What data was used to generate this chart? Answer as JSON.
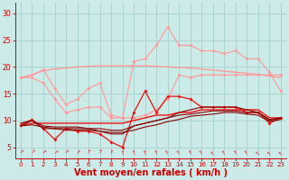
{
  "bg_color": "#cceae7",
  "grid_color": "#aad4d0",
  "xlabel": "Vent moyen/en rafales ( km/h )",
  "xlabel_color": "#cc0000",
  "xlabel_fontsize": 7,
  "tick_color": "#cc0000",
  "xlim": [
    -0.5,
    23.5
  ],
  "ylim": [
    3,
    32
  ],
  "yticks": [
    5,
    10,
    15,
    20,
    25,
    30
  ],
  "xticks": [
    0,
    1,
    2,
    3,
    4,
    5,
    6,
    7,
    8,
    9,
    10,
    11,
    12,
    13,
    14,
    15,
    16,
    17,
    18,
    19,
    20,
    21,
    22,
    23
  ],
  "x": [
    0,
    1,
    2,
    3,
    4,
    5,
    6,
    7,
    8,
    9,
    10,
    11,
    12,
    13,
    14,
    15,
    16,
    17,
    18,
    19,
    20,
    21,
    22,
    23
  ],
  "line_pink_jagged_y": [
    18.0,
    18.5,
    19.5,
    16.0,
    13.0,
    14.0,
    16.0,
    17.0,
    11.0,
    10.5,
    21.0,
    21.5,
    24.0,
    27.5,
    24.0,
    24.0,
    23.0,
    23.0,
    22.5,
    23.0,
    21.5,
    21.5,
    19.0,
    15.5
  ],
  "line_pink_flat_y": [
    18.0,
    18.5,
    19.3,
    19.6,
    19.8,
    20.0,
    20.1,
    20.2,
    20.2,
    20.2,
    20.2,
    20.2,
    20.1,
    20.0,
    19.9,
    19.8,
    19.6,
    19.4,
    19.2,
    19.0,
    18.8,
    18.6,
    18.3,
    18.0
  ],
  "line_pink_lower_y": [
    18.0,
    18.0,
    17.0,
    14.0,
    11.5,
    12.0,
    12.5,
    12.5,
    10.5,
    10.5,
    10.5,
    11.0,
    12.0,
    14.0,
    18.5,
    18.0,
    18.5,
    18.5,
    18.5,
    18.5,
    18.5,
    18.5,
    18.5,
    18.5
  ],
  "line_red_jagged_y": [
    9.2,
    10.2,
    8.5,
    6.5,
    8.5,
    8.0,
    8.0,
    7.5,
    6.0,
    5.0,
    11.5,
    15.5,
    11.5,
    14.5,
    14.5,
    14.0,
    12.5,
    12.5,
    12.5,
    12.5,
    11.5,
    11.5,
    9.5,
    10.5
  ],
  "line_red_trend_y": [
    9.0,
    9.5,
    9.5,
    9.5,
    9.5,
    9.5,
    9.5,
    9.5,
    9.5,
    9.5,
    10.0,
    10.5,
    11.0,
    11.0,
    11.5,
    11.5,
    12.0,
    12.0,
    12.0,
    12.0,
    12.0,
    12.0,
    10.5,
    10.5
  ],
  "line_dark_upper_y": [
    9.0,
    10.0,
    8.5,
    8.5,
    8.5,
    8.5,
    8.5,
    8.0,
    7.5,
    7.5,
    9.0,
    9.5,
    10.0,
    10.5,
    11.5,
    12.0,
    12.5,
    12.5,
    12.5,
    12.5,
    12.0,
    11.5,
    10.0,
    10.5
  ],
  "line_dark_lower_y": [
    9.0,
    9.2,
    8.8,
    8.5,
    8.2,
    8.2,
    8.2,
    8.0,
    7.8,
    7.8,
    8.2,
    8.8,
    9.2,
    9.8,
    10.2,
    10.8,
    11.0,
    11.2,
    11.5,
    11.5,
    11.2,
    11.0,
    9.8,
    10.2
  ],
  "line_dark_mid_y": [
    9.5,
    10.0,
    9.0,
    8.8,
    8.8,
    8.8,
    8.5,
    8.5,
    8.2,
    8.2,
    9.0,
    9.5,
    10.0,
    10.5,
    11.0,
    11.2,
    11.5,
    11.8,
    11.8,
    11.8,
    11.5,
    11.5,
    10.2,
    10.5
  ],
  "pink_color": "#ff9999",
  "red_color": "#ee1111",
  "dark_color": "#880000",
  "marker_size": 2.0
}
